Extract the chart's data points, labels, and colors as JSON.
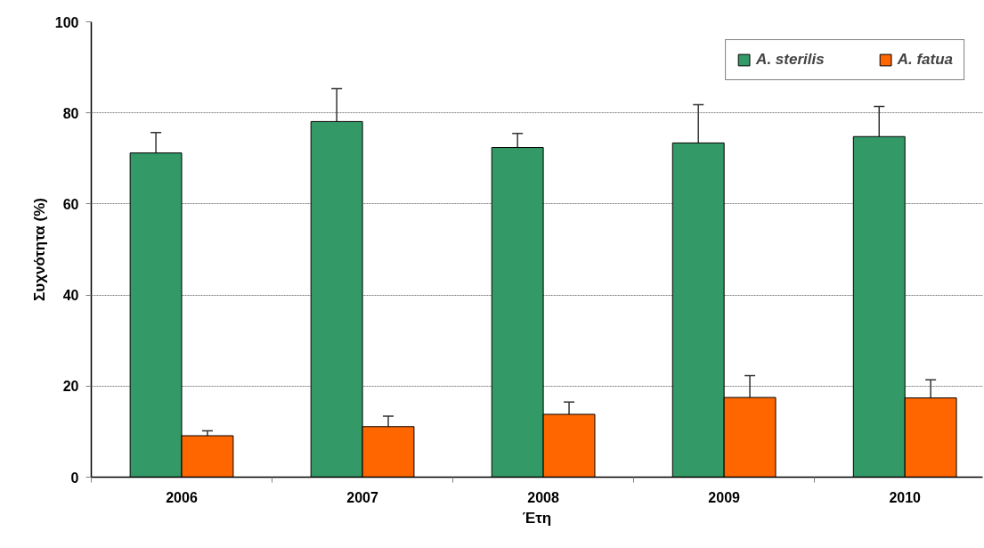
{
  "chart_data": {
    "type": "bar",
    "xlabel": "Έτη",
    "ylabel": "Συχνότητα (%)",
    "categories": [
      "2006",
      "2007",
      "2008",
      "2009",
      "2010"
    ],
    "ylim": [
      0,
      100
    ],
    "yticks": [
      0,
      20,
      40,
      60,
      80,
      100
    ],
    "grid": "y",
    "legend": "top right",
    "series": [
      {
        "name": "A. sterilis",
        "color": "#339966",
        "values": [
          71.2,
          78.1,
          72.4,
          73.4,
          74.8
        ],
        "errors": [
          [
            71.2,
            75.7
          ],
          [
            78.1,
            85.3
          ],
          [
            72.4,
            75.5
          ],
          [
            73.4,
            81.8
          ],
          [
            74.8,
            81.4
          ]
        ]
      },
      {
        "name": "A. fatua",
        "color": "#ff6600",
        "values": [
          9.1,
          11.1,
          13.8,
          17.5,
          17.4
        ],
        "errors": [
          [
            9.1,
            10.2
          ],
          [
            11.1,
            13.4
          ],
          [
            13.8,
            16.5
          ],
          [
            17.5,
            22.3
          ],
          [
            17.4,
            21.4
          ]
        ]
      }
    ]
  }
}
